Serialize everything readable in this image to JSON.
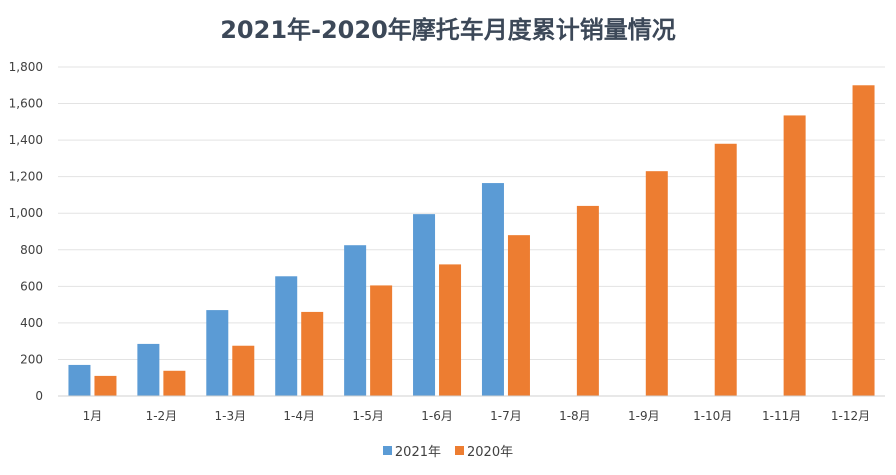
{
  "chart_data": {
    "type": "bar",
    "title": "2021年-2020年摩托车月度累计销量情况",
    "xlabel": "",
    "ylabel": "",
    "categories": [
      "1月",
      "1-2月",
      "1-3月",
      "1-4月",
      "1-5月",
      "1-6月",
      "1-7月",
      "1-8月",
      "1-9月",
      "1-10月",
      "1-11月",
      "1-12月"
    ],
    "series": [
      {
        "name": "2021年",
        "color": "#5b9bd5",
        "values": [
          170,
          285,
          470,
          655,
          825,
          995,
          1165,
          null,
          null,
          null,
          null,
          null
        ]
      },
      {
        "name": "2020年",
        "color": "#ed7d31",
        "values": [
          110,
          138,
          275,
          460,
          605,
          720,
          880,
          1040,
          1230,
          1380,
          1535,
          1700
        ]
      }
    ],
    "ylim": [
      0,
      1800
    ],
    "yticks": [
      "0",
      "200",
      "400",
      "600",
      "800",
      "1,000",
      "1,200",
      "1,400",
      "1,600",
      "1,800"
    ],
    "grid": true,
    "legend": "bottom"
  }
}
